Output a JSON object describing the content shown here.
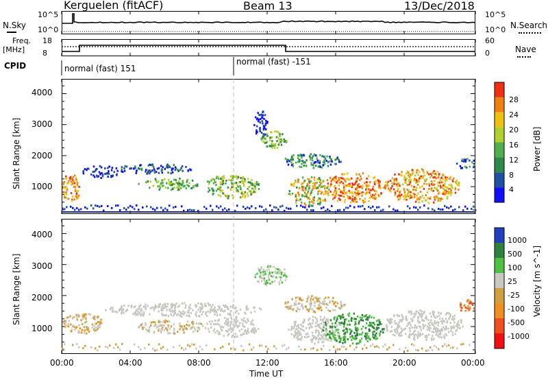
{
  "header": {
    "station": "Kerguelen (fitACF)",
    "beam": "Beam 13",
    "date": "13/Dec/2018"
  },
  "top_panels": {
    "nsky_label": "N.Sky",
    "nsky_ticks": [
      "10^5",
      "10^0"
    ],
    "nsearch_label": "N.Search",
    "nsearch_ticks": [
      "10^5",
      "10^0"
    ],
    "freq_label_line1": "Freq.",
    "freq_label_line2": "[MHz]",
    "freq_ticks": [
      "18",
      "8"
    ],
    "nave_label": "Nave",
    "nave_ticks": [
      "60",
      "0"
    ],
    "cpid_label": "CPID",
    "cpid_segments": [
      "normal (fast) 151",
      "normal (fast) -151"
    ]
  },
  "chart_data": [
    {
      "type": "heatmap",
      "ylabel": "Slant Range [km]",
      "yticks": [
        "4000",
        "3000",
        "2000",
        "1000"
      ],
      "colorbar_label": "Power [dB]",
      "colorbar_ticks": [
        "28",
        "24",
        "20",
        "16",
        "12",
        "8",
        "4"
      ],
      "colors": [
        "#1010ff",
        "#2050a0",
        "#2f8a4a",
        "#50b050",
        "#b0d030",
        "#f0c010",
        "#f08010",
        "#f03010"
      ]
    },
    {
      "type": "heatmap",
      "ylabel": "Slant Range [km]",
      "yticks": [
        "4000",
        "3000",
        "2000",
        "1000"
      ],
      "colorbar_label": "Velocity [m s^-1]",
      "colorbar_ticks": [
        "1000",
        "500",
        "100",
        "25",
        "-25",
        "-100",
        "-500",
        "-1000"
      ],
      "colors": [
        "#2040c0",
        "#2f7f3f",
        "#50c040",
        "#c8c8c0",
        "#d0a040",
        "#f09020",
        "#f05020",
        "#f01010"
      ]
    }
  ],
  "x_axis": {
    "ticks": [
      "00:00",
      "04:00",
      "08:00",
      "12:00",
      "16:00",
      "20:00",
      "00:00"
    ],
    "label": "Time UT"
  }
}
